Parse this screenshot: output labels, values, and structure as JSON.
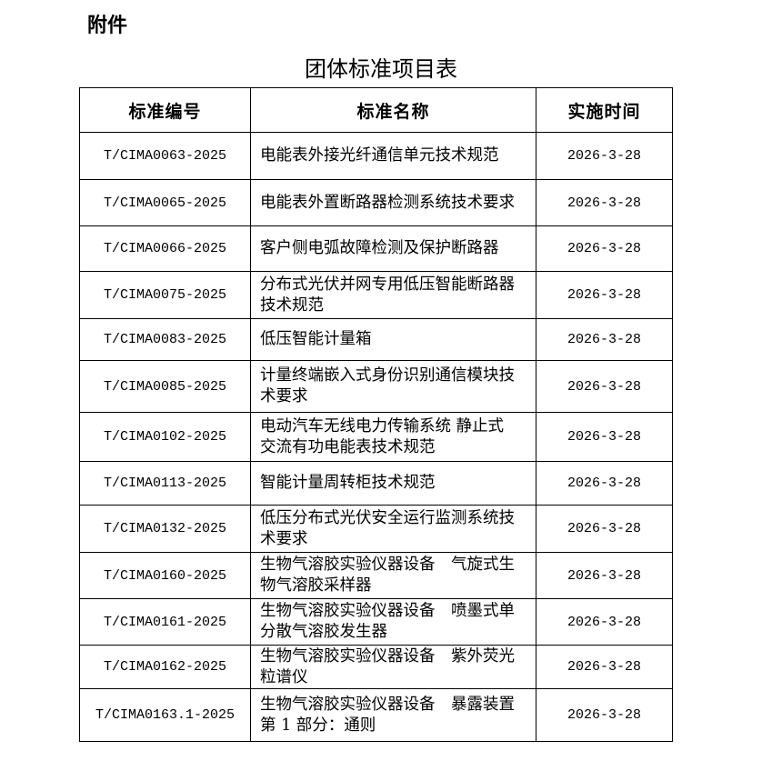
{
  "attachment_label": "附件",
  "title": "团体标准项目表",
  "table": {
    "headers": [
      "标准编号",
      "标准名称",
      "实施时间"
    ],
    "rows": [
      {
        "code": "T/CIMA0063-2025",
        "name": "电能表外接光纤通信单元技术规范",
        "date": "2026-3-28"
      },
      {
        "code": "T/CIMA0065-2025",
        "name": "电能表外置断路器检测系统技术要求",
        "date": "2026-3-28"
      },
      {
        "code": "T/CIMA0066-2025",
        "name": "客户侧电弧故障检测及保护断路器",
        "date": "2026-3-28"
      },
      {
        "code": "T/CIMA0075-2025",
        "name": "分布式光伏并网专用低压智能断路器\n技术规范",
        "date": "2026-3-28"
      },
      {
        "code": "T/CIMA0083-2025",
        "name": "低压智能计量箱",
        "date": "2026-3-28"
      },
      {
        "code": "T/CIMA0085-2025",
        "name": "计量终端嵌入式身份识别通信模块技\n术要求",
        "date": "2026-3-28"
      },
      {
        "code": "T/CIMA0102-2025",
        "name": "电动汽车无线电力传输系统 静止式\n交流有功电能表技术规范",
        "date": "2026-3-28"
      },
      {
        "code": "T/CIMA0113-2025",
        "name": "智能计量周转柜技术规范",
        "date": "2026-3-28"
      },
      {
        "code": "T/CIMA0132-2025",
        "name": "低压分布式光伏安全运行监测系统技\n术要求",
        "date": "2026-3-28"
      },
      {
        "code": "T/CIMA0160-2025",
        "name": "生物气溶胶实验仪器设备　气旋式生\n物气溶胶采样器",
        "date": "2026-3-28"
      },
      {
        "code": "T/CIMA0161-2025",
        "name": "生物气溶胶实验仪器设备　喷墨式单\n分散气溶胶发生器",
        "date": "2026-3-28"
      },
      {
        "code": "T/CIMA0162-2025",
        "name": "生物气溶胶实验仪器设备　紫外荧光\n粒谱仪",
        "date": "2026-3-28"
      },
      {
        "code": "T/CIMA0163.1-2025",
        "name": "生物气溶胶实验仪器设备　暴露装置\n第 1 部分：通则",
        "date": "2026-3-28"
      }
    ]
  }
}
